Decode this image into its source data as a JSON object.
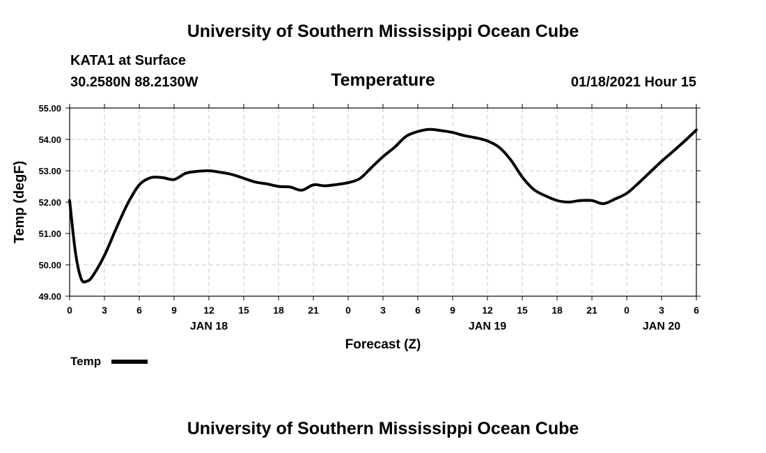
{
  "header": {
    "title_top": "University of Southern Mississippi Ocean Cube",
    "station": "KATA1 at Surface",
    "coords": "30.2580N 88.2130W",
    "variable": "Temperature",
    "datetime": "01/18/2021 Hour 15"
  },
  "footer": {
    "title_bottom": "University of Southern Mississippi Ocean Cube"
  },
  "legend": {
    "label": "Temp",
    "color": "#000000"
  },
  "chart_data": {
    "type": "line",
    "title": "Temperature",
    "xlabel": "Forecast (Z)",
    "ylabel": "Temp (degF)",
    "xlim": [
      0,
      54
    ],
    "ylim": [
      49.0,
      55.0
    ],
    "grid": true,
    "legend_position": "bottom-left",
    "y_ticks": [
      {
        "value": 49,
        "label": "49.00"
      },
      {
        "value": 50,
        "label": "50.00"
      },
      {
        "value": 51,
        "label": "51.00"
      },
      {
        "value": 52,
        "label": "52.00"
      },
      {
        "value": 53,
        "label": "53.00"
      },
      {
        "value": 54,
        "label": "54.00"
      },
      {
        "value": 55,
        "label": "55.00"
      }
    ],
    "x_ticks": [
      {
        "value": 0,
        "label": "0"
      },
      {
        "value": 3,
        "label": "3"
      },
      {
        "value": 6,
        "label": "6"
      },
      {
        "value": 9,
        "label": "9"
      },
      {
        "value": 12,
        "label": "12"
      },
      {
        "value": 15,
        "label": "15"
      },
      {
        "value": 18,
        "label": "18"
      },
      {
        "value": 21,
        "label": "21"
      },
      {
        "value": 24,
        "label": "0"
      },
      {
        "value": 27,
        "label": "3"
      },
      {
        "value": 30,
        "label": "6"
      },
      {
        "value": 33,
        "label": "9"
      },
      {
        "value": 36,
        "label": "12"
      },
      {
        "value": 39,
        "label": "15"
      },
      {
        "value": 42,
        "label": "18"
      },
      {
        "value": 45,
        "label": "21"
      },
      {
        "value": 48,
        "label": "0"
      },
      {
        "value": 51,
        "label": "3"
      },
      {
        "value": 54,
        "label": "6"
      }
    ],
    "date_labels": [
      {
        "value": 12,
        "label": "JAN 18"
      },
      {
        "value": 36,
        "label": "JAN 19"
      },
      {
        "value": 51,
        "label": "JAN 20"
      }
    ],
    "series": [
      {
        "name": "Temp",
        "x": [
          0,
          0.5,
          1,
          1.5,
          2,
          3,
          4,
          5,
          6,
          7,
          8,
          9,
          10,
          11,
          12,
          13,
          14,
          15,
          16,
          17,
          18,
          19,
          20,
          21,
          22,
          23,
          24,
          25,
          26,
          27,
          28,
          29,
          30,
          31,
          32,
          33,
          34,
          35,
          36,
          37,
          38,
          39,
          40,
          41,
          42,
          43,
          44,
          45,
          46,
          47,
          48,
          49,
          50,
          51,
          52,
          53,
          54
        ],
        "values": [
          52.05,
          50.4,
          49.55,
          49.48,
          49.65,
          50.3,
          51.15,
          51.95,
          52.55,
          52.78,
          52.78,
          52.72,
          52.92,
          52.98,
          53.0,
          52.95,
          52.88,
          52.76,
          52.64,
          52.58,
          52.5,
          52.48,
          52.38,
          52.55,
          52.52,
          52.56,
          52.62,
          52.75,
          53.1,
          53.45,
          53.75,
          54.1,
          54.25,
          54.32,
          54.28,
          54.22,
          54.12,
          54.05,
          53.95,
          53.75,
          53.35,
          52.8,
          52.4,
          52.2,
          52.05,
          52.0,
          52.05,
          52.05,
          51.95,
          52.1,
          52.28,
          52.6,
          52.95,
          53.3,
          53.62,
          53.95,
          54.3
        ]
      }
    ]
  }
}
